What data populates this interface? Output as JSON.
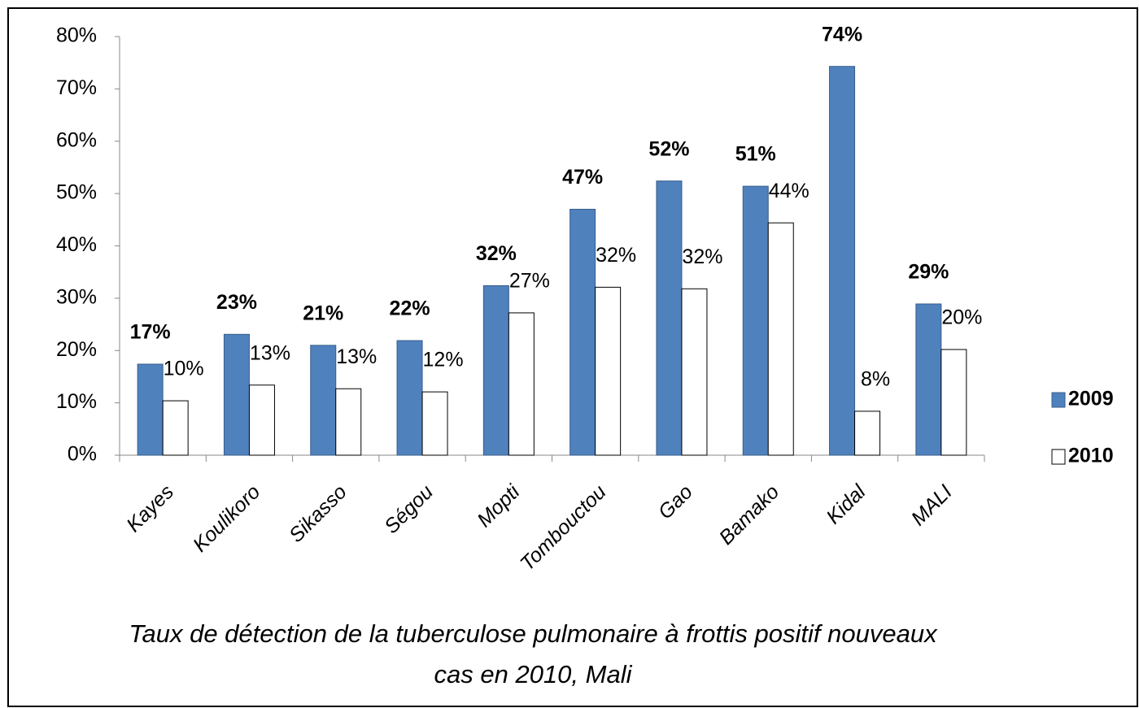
{
  "chart_data": {
    "type": "bar",
    "title": "Taux de détection de la tuberculose pulmonaire à frottis positif  nouveaux cas en 2010, Mali",
    "categories": [
      "Kayes",
      "Koulikoro",
      "Sikasso",
      "Ségou",
      "Mopti",
      "Tombouctou",
      "Gao",
      "Bamako",
      "Kidal",
      "MALI"
    ],
    "series": [
      {
        "name": "2009",
        "color": "#4f81bd",
        "values": [
          17.4,
          23.1,
          21.0,
          21.9,
          32.4,
          47.0,
          52.4,
          51.4,
          74.3,
          28.9
        ],
        "value_labels": [
          "17%",
          "23%",
          "21%",
          "22%",
          "32%",
          "47%",
          "52%",
          "51%",
          "74%",
          "29%"
        ]
      },
      {
        "name": "2010",
        "color": "#ffffff",
        "values": [
          10.4,
          13.4,
          12.7,
          12.1,
          27.2,
          32.1,
          31.8,
          44.4,
          8.4,
          20.2
        ],
        "value_labels": [
          "10%",
          "13%",
          "13%",
          "12%",
          "27%",
          "32%",
          "32%",
          "44%",
          "8%",
          "20%"
        ]
      }
    ],
    "ylim": [
      0,
      80
    ],
    "yticks": [
      {
        "value": 0,
        "label": "0%"
      },
      {
        "value": 10,
        "label": "10%"
      },
      {
        "value": 20,
        "label": "20%"
      },
      {
        "value": 30,
        "label": "30%"
      },
      {
        "value": 40,
        "label": "40%"
      },
      {
        "value": 50,
        "label": "50%"
      },
      {
        "value": 60,
        "label": "60%"
      },
      {
        "value": 70,
        "label": "70%"
      },
      {
        "value": 80,
        "label": "80%"
      }
    ],
    "legend": "right"
  }
}
